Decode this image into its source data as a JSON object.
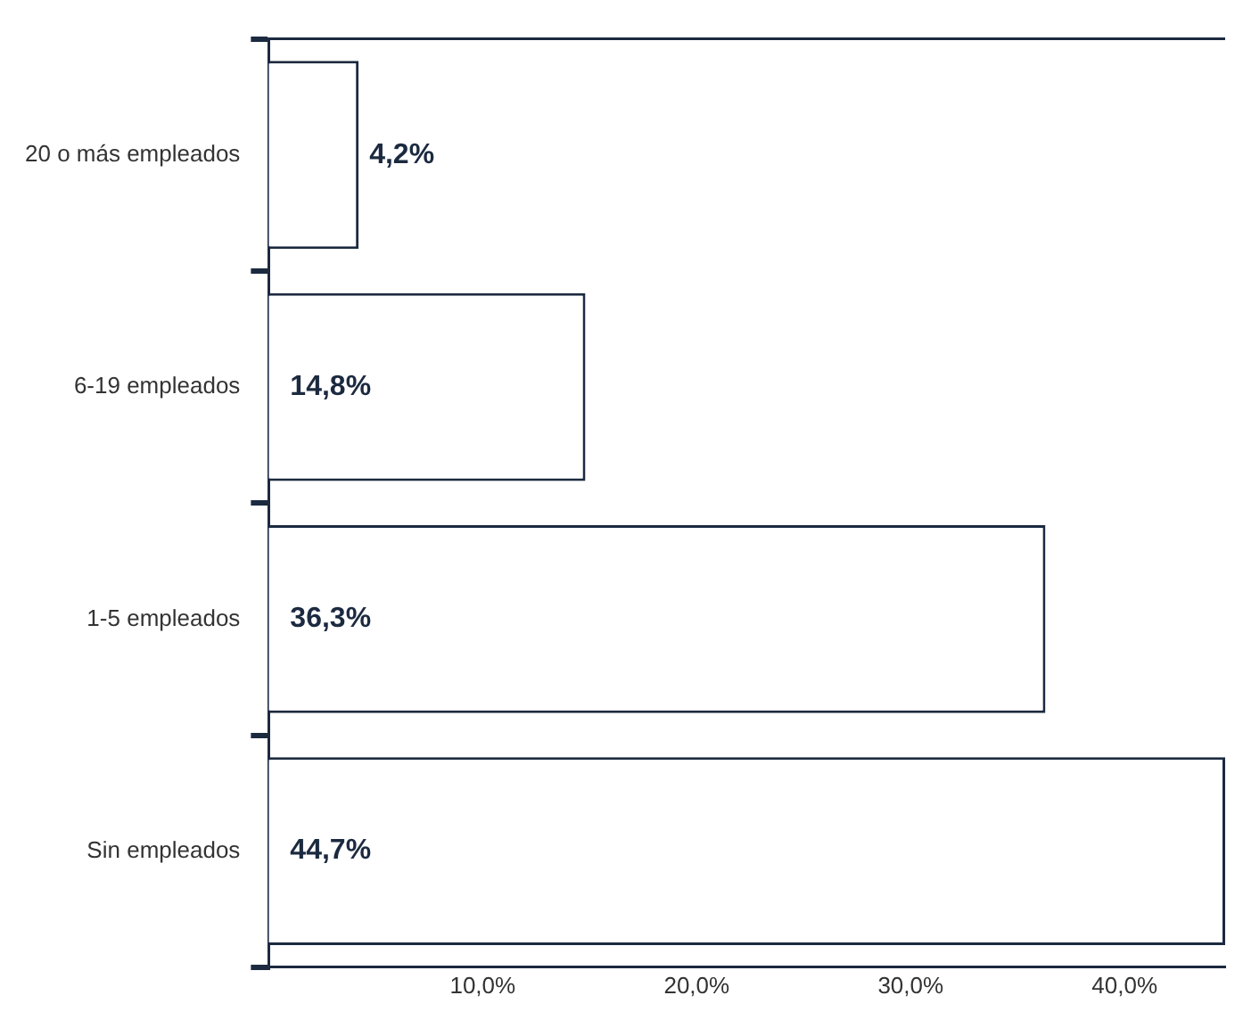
{
  "chart_data": {
    "type": "bar",
    "orientation": "horizontal",
    "categories": [
      "20 o más empleados",
      "6-19 empleados",
      "1-5 empleados",
      "Sin empleados"
    ],
    "values": [
      4.2,
      14.8,
      36.3,
      44.7
    ],
    "value_labels": [
      "4,2%",
      "14,8%",
      "36,3%",
      "44,7%"
    ],
    "color": "#ffffff",
    "xlim": [
      0,
      44.7
    ],
    "xticks": [
      {
        "value": 10,
        "label": "10,0%"
      },
      {
        "value": 20,
        "label": "20,0%"
      },
      {
        "value": 30,
        "label": "30,0%"
      },
      {
        "value": 40,
        "label": "40,0%"
      }
    ],
    "grid": false,
    "legend": false
  }
}
